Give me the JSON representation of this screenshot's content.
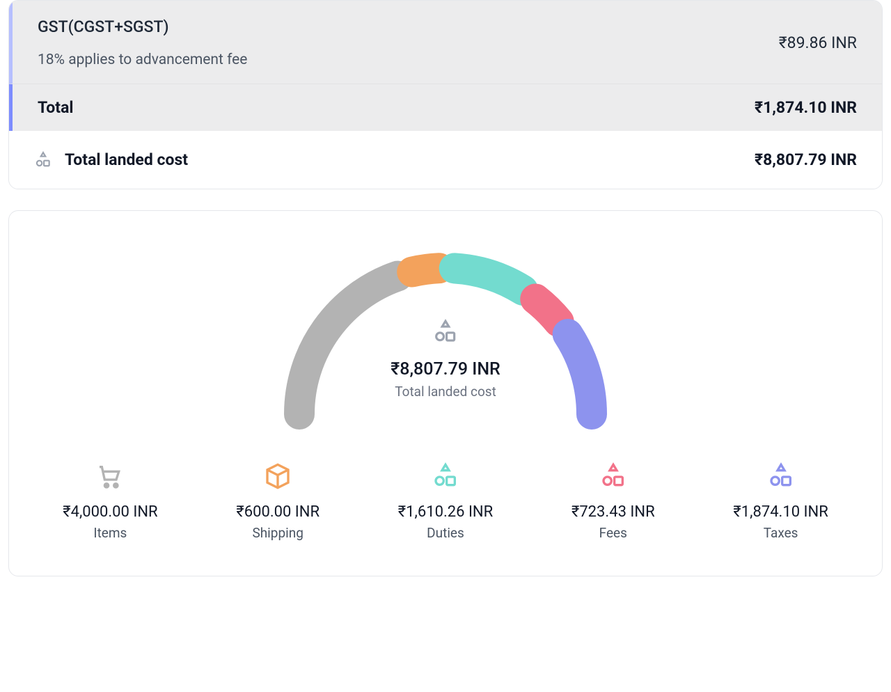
{
  "summary": {
    "gst_title": "GST(CGST+SGST)",
    "gst_sub": "18% applies to advancement fee",
    "gst_amount": "₹89.86 INR",
    "section_total_label": "Total",
    "section_total_amount": "₹1,874.10 INR",
    "landed_label": "Total landed cost",
    "landed_amount": "₹8,807.79 INR",
    "accent_light": "#b6bfff",
    "accent_dark": "#7d8cff",
    "panel_bg": "#ececed"
  },
  "chart": {
    "type": "semicircle-donut",
    "center_amount": "₹8,807.79 INR",
    "center_label": "Total landed cost",
    "total_value": 8807.79,
    "stroke_width": 44,
    "gap_deg": 6,
    "background_color": "#ffffff",
    "segments": [
      {
        "key": "items",
        "value": 4000.0,
        "color": "#b3b3b3"
      },
      {
        "key": "shipping",
        "value": 600.0,
        "color": "#f3a25c"
      },
      {
        "key": "duties",
        "value": 1610.26,
        "color": "#73dbcf"
      },
      {
        "key": "fees",
        "value": 723.43,
        "color": "#f27289"
      },
      {
        "key": "taxes",
        "value": 1874.1,
        "color": "#8d93ee"
      }
    ]
  },
  "legend": {
    "items": {
      "amount": "₹4,000.00 INR",
      "label": "Items",
      "icon_color": "#b3b3b3"
    },
    "shipping": {
      "amount": "₹600.00 INR",
      "label": "Shipping",
      "icon_color": "#f3a25c"
    },
    "duties": {
      "amount": "₹1,610.26 INR",
      "label": "Duties",
      "icon_color": "#73dbcf"
    },
    "fees": {
      "amount": "₹723.43 INR",
      "label": "Fees",
      "icon_color": "#f27289"
    },
    "taxes": {
      "amount": "₹1,874.10 INR",
      "label": "Taxes",
      "icon_color": "#8d93ee"
    }
  }
}
